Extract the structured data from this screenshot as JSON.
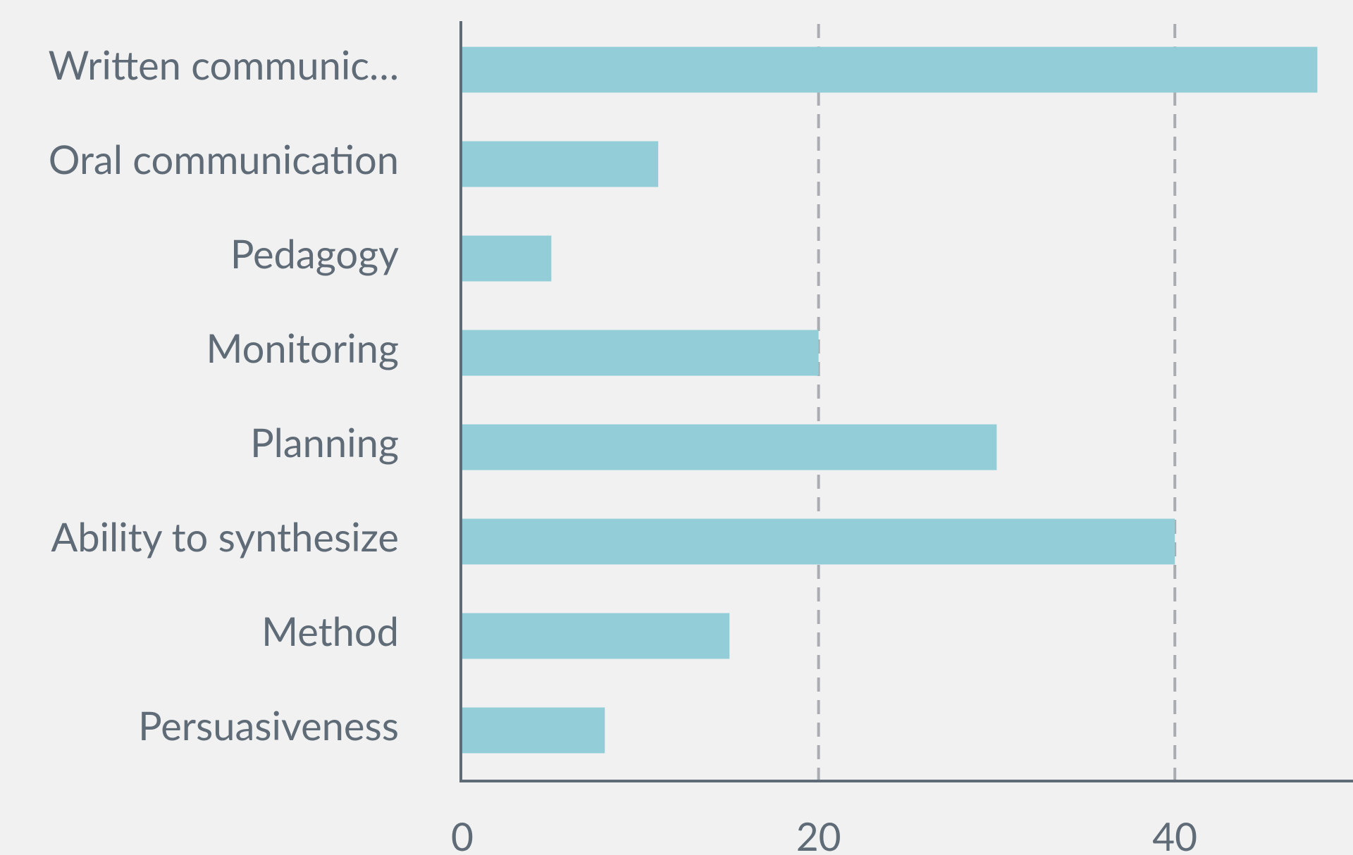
{
  "chart_data": {
    "type": "bar",
    "orientation": "horizontal",
    "categories": [
      "Written communic…",
      "Oral communication",
      "Pedagogy",
      "Monitoring",
      "Planning",
      "Ability to synthesize",
      "Method",
      "Persuasiveness"
    ],
    "values": [
      48,
      11,
      5,
      20,
      30,
      40,
      15,
      8
    ],
    "color": "#93ced8",
    "xlim": [
      0,
      50
    ],
    "xticks": [
      0,
      20,
      40
    ],
    "grid": true
  }
}
